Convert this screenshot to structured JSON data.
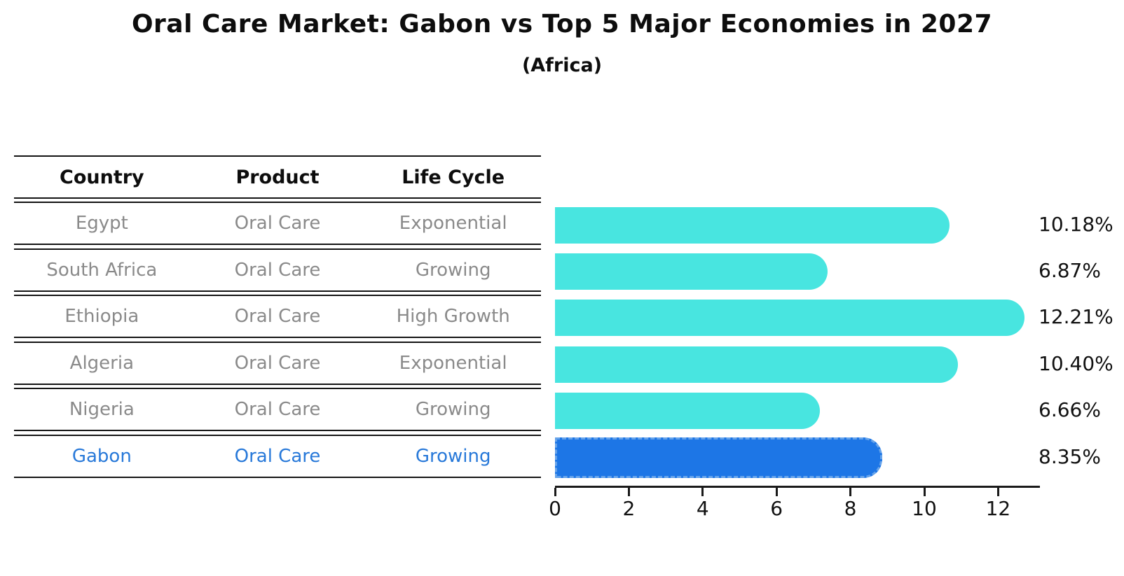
{
  "title": "Oral Care Market: Gabon vs Top 5 Major Economies in 2027",
  "subtitle": "(Africa)",
  "table": {
    "columns": [
      "Country",
      "Product",
      "Life Cycle"
    ],
    "rows": [
      {
        "country": "Egypt",
        "product": "Oral Care",
        "life_cycle": "Exponential",
        "highlight": false
      },
      {
        "country": "South Africa",
        "product": "Oral Care",
        "life_cycle": "Growing",
        "highlight": false
      },
      {
        "country": "Ethiopia",
        "product": "Oral Care",
        "life_cycle": "High Growth",
        "highlight": false
      },
      {
        "country": "Algeria",
        "product": "Oral Care",
        "life_cycle": "Exponential",
        "highlight": false
      },
      {
        "country": "Nigeria",
        "product": "Oral Care",
        "life_cycle": "Growing",
        "highlight": false
      },
      {
        "country": "Gabon",
        "product": "Oral Care",
        "life_cycle": "Growing",
        "highlight": true
      }
    ]
  },
  "chart_data": {
    "type": "bar",
    "orientation": "horizontal",
    "title": "Oral Care Market: Gabon vs Top 5 Major Economies in 2027 (Africa)",
    "categories": [
      "Egypt",
      "South Africa",
      "Ethiopia",
      "Algeria",
      "Nigeria",
      "Gabon"
    ],
    "values": [
      10.18,
      6.87,
      12.21,
      10.4,
      6.66,
      8.35
    ],
    "value_labels": [
      "10.18%",
      "6.87%",
      "12.21%",
      "10.40%",
      "6.66%",
      "8.35%"
    ],
    "xlabel": "",
    "ylabel": "",
    "xlim": [
      0,
      13
    ],
    "x_ticks": [
      0,
      2,
      4,
      6,
      8,
      10,
      12
    ],
    "grid": false,
    "legend": false,
    "highlight_category": "Gabon",
    "highlight_index": 5
  },
  "colors": {
    "bar": "#48e5e0",
    "highlight_bar": "#1d76e6",
    "highlight_text": "#2879d9",
    "table_text": "#8a8a8a",
    "header_text": "#0d0d0d",
    "axis": "#1a1a1a"
  }
}
